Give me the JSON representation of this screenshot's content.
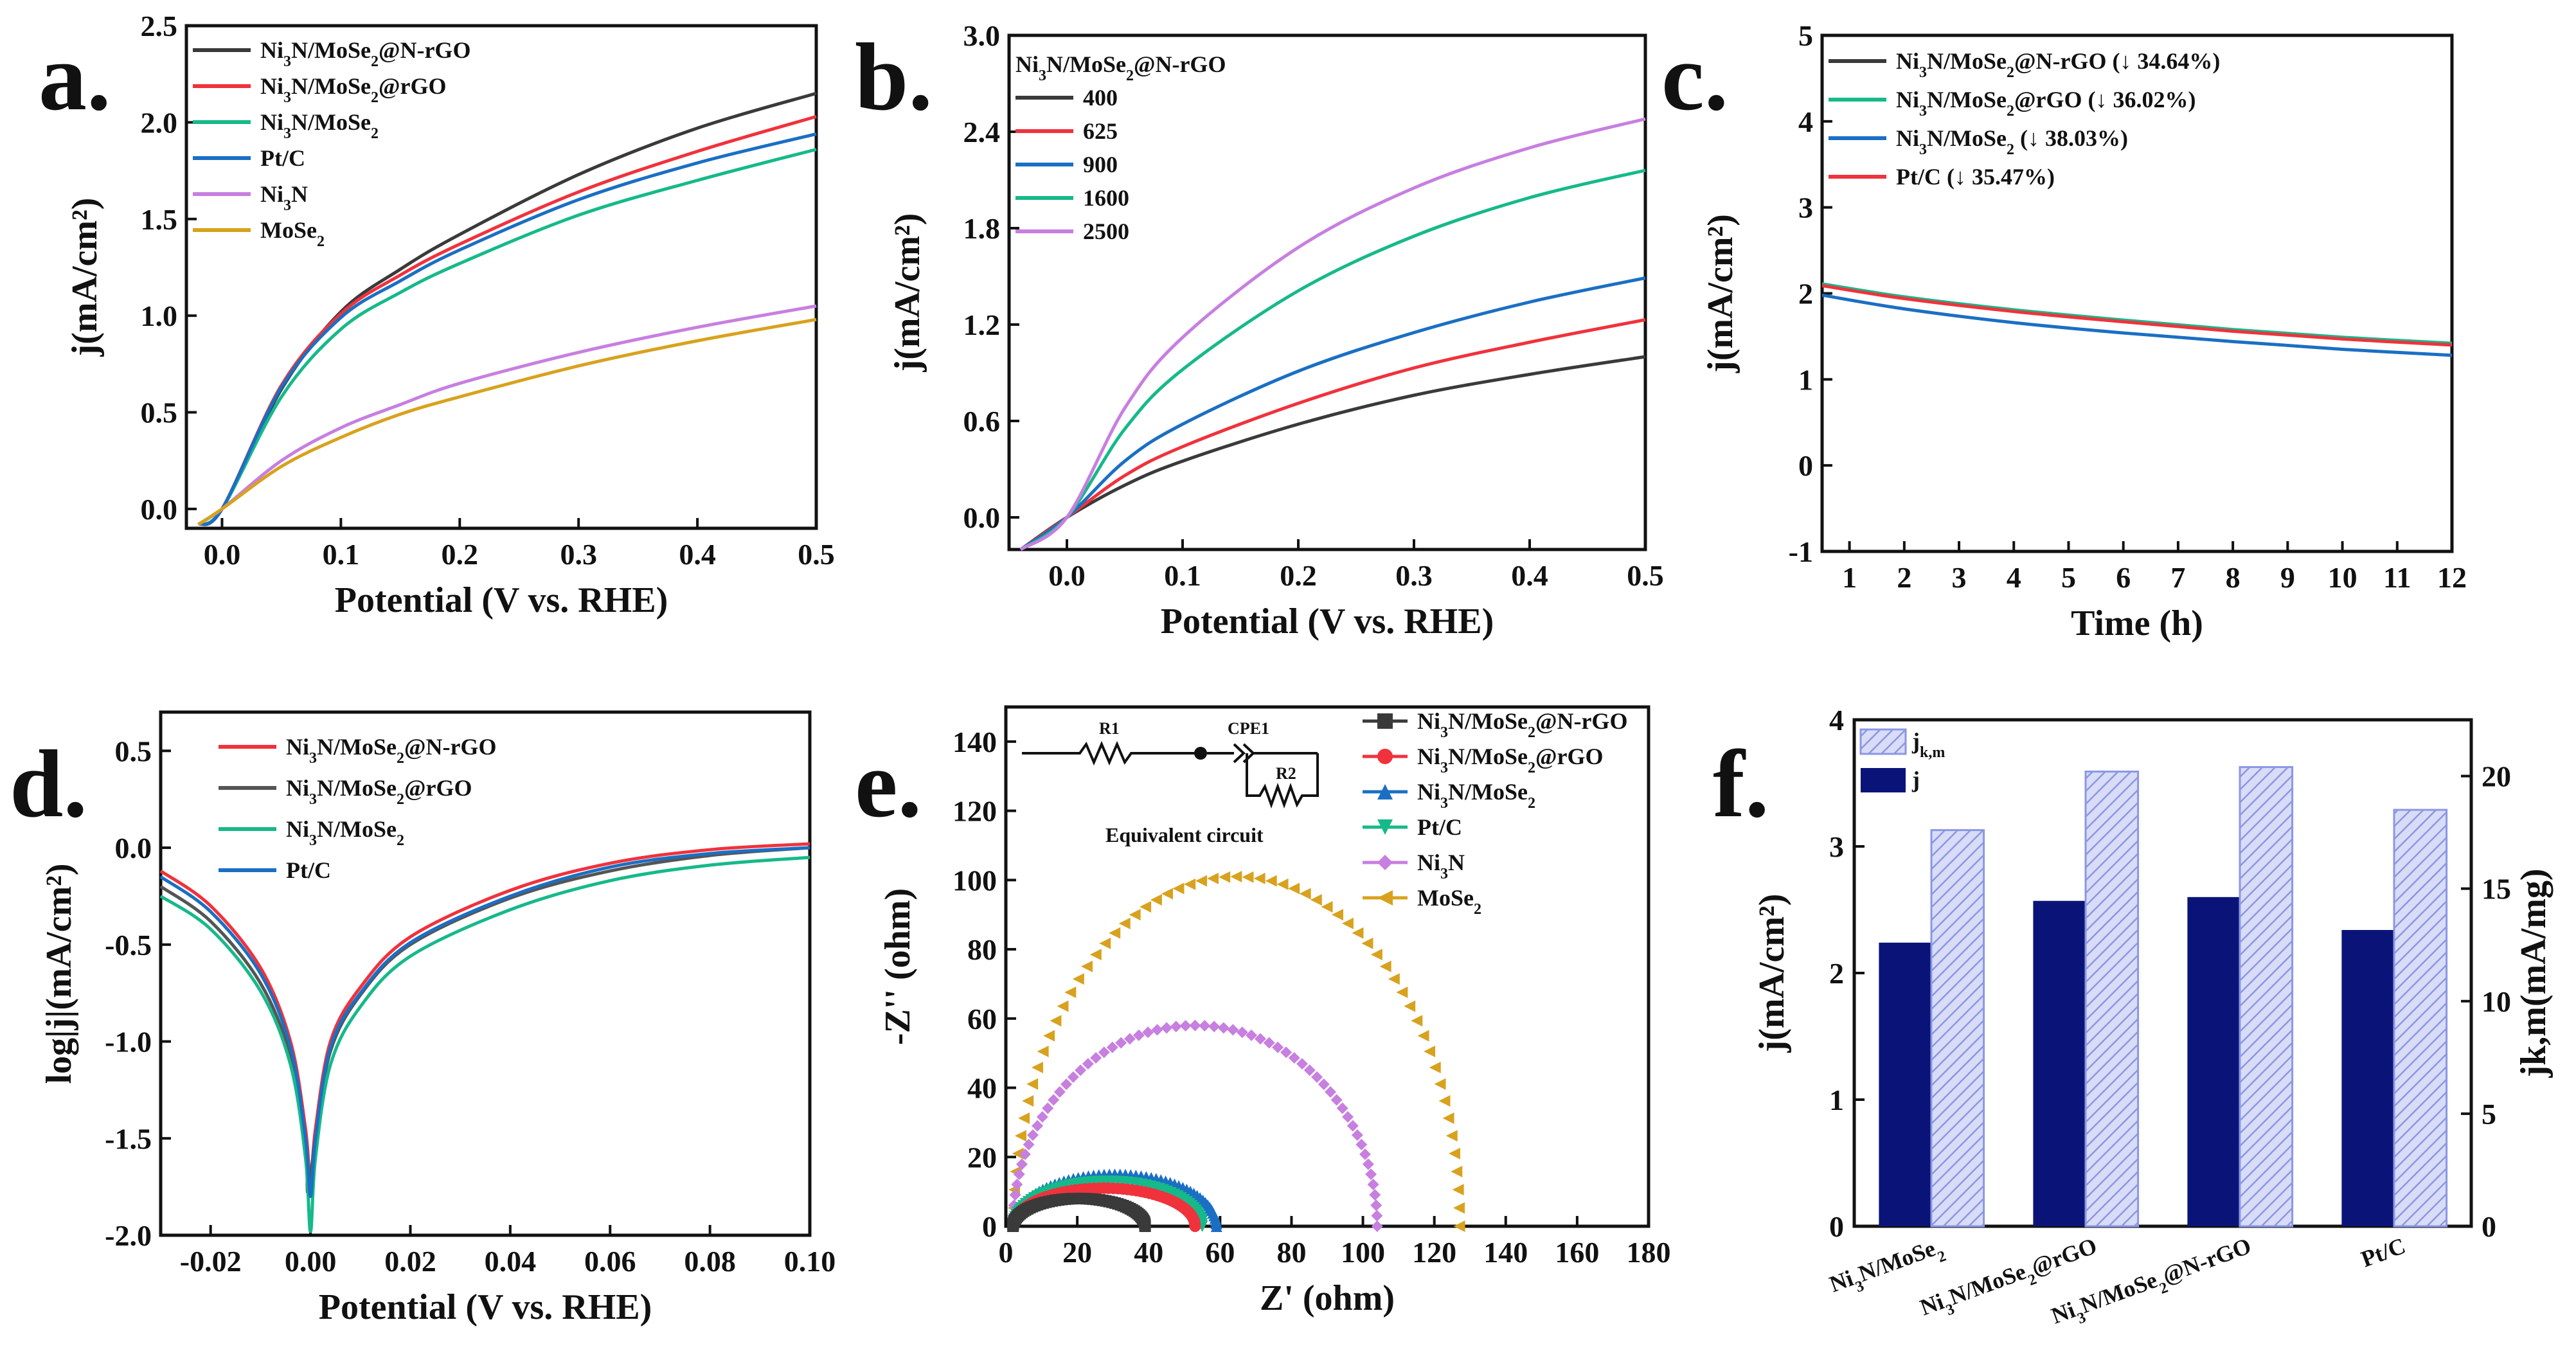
{
  "colors": {
    "black": "#3a3a3a",
    "red": "#f0323c",
    "green": "#16b98a",
    "blue": "#1a6fc4",
    "purple": "#c77fe0",
    "orange": "#d8a21e",
    "gray": "#555555",
    "navy": "#0a1478",
    "hatch": "#aab4ee"
  },
  "panels": {
    "a": "a.",
    "b": "b.",
    "c": "c.",
    "d": "d.",
    "e": "e.",
    "f": "f."
  },
  "circuit": {
    "r1": "R1",
    "r2": "R2",
    "cpe": "CPE1",
    "caption": "Equivalent circuit"
  },
  "chart_data": [
    {
      "id": "a",
      "type": "line",
      "xlabel": "Potential (V vs. RHE)",
      "ylabel": "j(mA/cm²)",
      "xlim": [
        -0.03,
        0.5
      ],
      "ylim": [
        -0.1,
        2.5
      ],
      "xticks": [
        "0.0",
        "0.1",
        "0.2",
        "0.3",
        "0.4",
        "0.5"
      ],
      "yticks": [
        "0.0",
        "0.5",
        "1.0",
        "1.5",
        "2.0",
        "2.5"
      ],
      "legend_position": "top-left",
      "series": [
        {
          "name": "Ni₃N/MoSe₂@N-rGO",
          "color": "black",
          "x": [
            -0.02,
            0.0,
            0.05,
            0.1,
            0.15,
            0.2,
            0.3,
            0.4,
            0.5
          ],
          "y": [
            -0.08,
            0.0,
            0.62,
            1.02,
            1.24,
            1.42,
            1.73,
            1.97,
            2.15
          ]
        },
        {
          "name": "Ni₃N/MoSe₂@rGO",
          "color": "red",
          "x": [
            -0.02,
            0.0,
            0.05,
            0.1,
            0.15,
            0.2,
            0.3,
            0.4,
            0.5
          ],
          "y": [
            -0.08,
            0.0,
            0.64,
            1.01,
            1.21,
            1.37,
            1.64,
            1.85,
            2.03
          ]
        },
        {
          "name": "Ni₃N/MoSe₂",
          "color": "green",
          "x": [
            -0.02,
            0.0,
            0.05,
            0.1,
            0.15,
            0.2,
            0.3,
            0.4,
            0.5
          ],
          "y": [
            -0.08,
            0.0,
            0.58,
            0.93,
            1.12,
            1.27,
            1.52,
            1.7,
            1.86
          ]
        },
        {
          "name": "Pt/C",
          "color": "blue",
          "x": [
            -0.02,
            0.0,
            0.05,
            0.1,
            0.15,
            0.2,
            0.3,
            0.4,
            0.5
          ],
          "y": [
            -0.08,
            0.0,
            0.63,
            0.99,
            1.18,
            1.34,
            1.6,
            1.79,
            1.94
          ]
        },
        {
          "name": "Ni₃N",
          "color": "purple",
          "x": [
            -0.02,
            0.0,
            0.05,
            0.1,
            0.15,
            0.2,
            0.3,
            0.4,
            0.5
          ],
          "y": [
            -0.08,
            0.0,
            0.25,
            0.42,
            0.54,
            0.65,
            0.81,
            0.94,
            1.05
          ]
        },
        {
          "name": "MoSe₂",
          "color": "orange",
          "x": [
            -0.02,
            0.0,
            0.05,
            0.1,
            0.15,
            0.2,
            0.3,
            0.4,
            0.5
          ],
          "y": [
            -0.08,
            0.0,
            0.22,
            0.37,
            0.49,
            0.58,
            0.74,
            0.87,
            0.98
          ]
        }
      ]
    },
    {
      "id": "b",
      "type": "line",
      "xlabel": "Potential (V vs. RHE)",
      "ylabel": "j(mA/cm²)",
      "xlim": [
        -0.05,
        0.5
      ],
      "ylim": [
        -0.2,
        3.0
      ],
      "xticks": [
        "0.0",
        "0.1",
        "0.2",
        "0.3",
        "0.4",
        "0.5"
      ],
      "yticks": [
        "0.0",
        "0.6",
        "1.2",
        "1.8",
        "2.4",
        "3.0"
      ],
      "legend_title": "Ni₃N/MoSe₂@N-rGO",
      "legend_position": "top-left",
      "series": [
        {
          "name": "400",
          "color": "black",
          "x": [
            -0.04,
            0.0,
            0.05,
            0.1,
            0.2,
            0.3,
            0.4,
            0.5
          ],
          "y": [
            -0.2,
            0.0,
            0.2,
            0.35,
            0.58,
            0.76,
            0.89,
            1.0
          ]
        },
        {
          "name": "625",
          "color": "red",
          "x": [
            -0.04,
            0.0,
            0.05,
            0.1,
            0.2,
            0.3,
            0.4,
            0.5
          ],
          "y": [
            -0.2,
            0.0,
            0.26,
            0.44,
            0.71,
            0.93,
            1.09,
            1.23
          ]
        },
        {
          "name": "900",
          "color": "blue",
          "x": [
            -0.04,
            0.0,
            0.05,
            0.1,
            0.2,
            0.3,
            0.4,
            0.5
          ],
          "y": [
            -0.2,
            0.0,
            0.35,
            0.58,
            0.91,
            1.15,
            1.34,
            1.49
          ]
        },
        {
          "name": "1600",
          "color": "green",
          "x": [
            -0.04,
            0.0,
            0.05,
            0.1,
            0.2,
            0.3,
            0.4,
            0.5
          ],
          "y": [
            -0.2,
            0.0,
            0.55,
            0.92,
            1.41,
            1.75,
            1.99,
            2.16
          ]
        },
        {
          "name": "2500",
          "color": "purple",
          "x": [
            -0.04,
            0.0,
            0.05,
            0.1,
            0.2,
            0.3,
            0.4,
            0.5
          ],
          "y": [
            -0.2,
            0.0,
            0.68,
            1.12,
            1.68,
            2.05,
            2.3,
            2.48
          ]
        }
      ]
    },
    {
      "id": "c",
      "type": "line",
      "xlabel": "Time (h)",
      "ylabel": "j(mA/cm²)",
      "xlim": [
        0.5,
        12
      ],
      "ylim": [
        -1,
        5
      ],
      "xticks": [
        "1",
        "2",
        "3",
        "4",
        "5",
        "6",
        "7",
        "8",
        "9",
        "10",
        "11",
        "12"
      ],
      "yticks": [
        "-1",
        "0",
        "1",
        "2",
        "3",
        "4",
        "5"
      ],
      "legend_position": "top-left",
      "series": [
        {
          "name": "Ni₃N/MoSe₂@N-rGO (↓ 34.64%)",
          "color": "black",
          "x": [
            0.5,
            2,
            4,
            6,
            8,
            10,
            12
          ],
          "y": [
            2.1,
            1.95,
            1.8,
            1.68,
            1.57,
            1.48,
            1.4
          ]
        },
        {
          "name": "Ni₃N/MoSe₂@rGO (↓ 36.02%)",
          "color": "green",
          "x": [
            0.5,
            2,
            4,
            6,
            8,
            10,
            12
          ],
          "y": [
            2.11,
            1.96,
            1.81,
            1.69,
            1.58,
            1.49,
            1.42
          ]
        },
        {
          "name": "Ni₃N/MoSe₂ (↓ 38.03%)",
          "color": "blue",
          "x": [
            0.5,
            2,
            4,
            6,
            8,
            10,
            12
          ],
          "y": [
            1.98,
            1.82,
            1.66,
            1.54,
            1.44,
            1.35,
            1.28
          ]
        },
        {
          "name": "Pt/C (↓ 35.47%)",
          "color": "red",
          "x": [
            0.5,
            2,
            4,
            6,
            8,
            10,
            12
          ],
          "y": [
            2.09,
            1.94,
            1.79,
            1.67,
            1.56,
            1.47,
            1.4
          ]
        }
      ]
    },
    {
      "id": "d",
      "type": "line",
      "xlabel": "Potential (V vs. RHE)",
      "ylabel": "log|j|(mA/cm²)",
      "xlim": [
        -0.03,
        0.1
      ],
      "ylim": [
        -2.0,
        0.7
      ],
      "xticks": [
        "-0.02",
        "0.00",
        "0.02",
        "0.04",
        "0.06",
        "0.08",
        "0.10"
      ],
      "yticks": [
        "-2.0",
        "-1.5",
        "-1.0",
        "-0.5",
        "0.0",
        "0.5"
      ],
      "legend_position": "top-left",
      "series": [
        {
          "name": "Ni₃N/MoSe₂@N-rGO",
          "color": "red",
          "x": [
            -0.03,
            -0.02,
            -0.01,
            -0.004,
            -0.001,
            0.0,
            0.001,
            0.004,
            0.01,
            0.02,
            0.04,
            0.06,
            0.08,
            0.1
          ],
          "y": [
            -0.12,
            -0.3,
            -0.62,
            -1.0,
            -1.45,
            -1.72,
            -1.45,
            -1.0,
            -0.72,
            -0.46,
            -0.22,
            -0.08,
            -0.01,
            0.02
          ]
        },
        {
          "name": "Ni₃N/MoSe₂@rGO",
          "color": "gray",
          "x": [
            -0.03,
            -0.02,
            -0.01,
            -0.004,
            -0.001,
            -0.0005,
            0.001,
            0.004,
            0.01,
            0.02,
            0.04,
            0.06,
            0.08,
            0.1
          ],
          "y": [
            -0.2,
            -0.38,
            -0.7,
            -1.08,
            -1.55,
            -1.78,
            -1.5,
            -1.05,
            -0.76,
            -0.5,
            -0.26,
            -0.12,
            -0.04,
            0.0
          ]
        },
        {
          "name": "Ni₃N/MoSe₂",
          "color": "green",
          "x": [
            -0.03,
            -0.02,
            -0.01,
            -0.004,
            -0.001,
            0.0,
            0.001,
            0.004,
            0.01,
            0.02,
            0.04,
            0.06,
            0.08,
            0.1
          ],
          "y": [
            -0.25,
            -0.42,
            -0.74,
            -1.12,
            -1.6,
            -1.98,
            -1.6,
            -1.12,
            -0.82,
            -0.56,
            -0.32,
            -0.17,
            -0.09,
            -0.05
          ]
        },
        {
          "name": "Pt/C",
          "color": "blue",
          "x": [
            -0.03,
            -0.02,
            -0.01,
            -0.004,
            -0.001,
            0.0,
            0.001,
            0.004,
            0.01,
            0.02,
            0.04,
            0.06,
            0.08,
            0.1
          ],
          "y": [
            -0.15,
            -0.33,
            -0.65,
            -1.03,
            -1.5,
            -1.8,
            -1.5,
            -1.03,
            -0.75,
            -0.49,
            -0.25,
            -0.1,
            -0.03,
            0.0
          ]
        }
      ]
    },
    {
      "id": "e",
      "type": "scatter",
      "xlabel": "Z' (ohm)",
      "ylabel": "-Z'' (ohm)",
      "xlim": [
        0,
        180
      ],
      "ylim": [
        0,
        150
      ],
      "xticks": [
        "0",
        "20",
        "40",
        "60",
        "80",
        "100",
        "120",
        "140",
        "160",
        "180"
      ],
      "yticks": [
        "0",
        "20",
        "40",
        "60",
        "80",
        "100",
        "120",
        "140"
      ],
      "legend_position": "top-right",
      "series": [
        {
          "name": "Ni₃N/MoSe₂@N-rGO",
          "color": "black",
          "marker": "square",
          "x0": 2,
          "x1": 39,
          "peak": 8
        },
        {
          "name": "Ni₃N/MoSe₂@rGO",
          "color": "red",
          "marker": "circle",
          "x0": 2,
          "x1": 53,
          "peak": 11
        },
        {
          "name": "Ni₃N/MoSe₂",
          "color": "blue",
          "marker": "triangle-up",
          "x0": 2,
          "x1": 59,
          "peak": 15
        },
        {
          "name": "Pt/C",
          "color": "green",
          "marker": "triangle-down",
          "x0": 2,
          "x1": 55,
          "peak": 13
        },
        {
          "name": "Ni₃N",
          "color": "purple",
          "marker": "diamond",
          "x0": 2,
          "x1": 104,
          "peak": 58
        },
        {
          "name": "MoSe₂",
          "color": "orange",
          "marker": "triangle-left",
          "x0": 2,
          "x1": 127,
          "peak": 101
        }
      ]
    },
    {
      "id": "f",
      "type": "bar",
      "ylabel": "j(mA/cm²)",
      "y2label": "jk,m(mA/mg)",
      "ylim": [
        0,
        4
      ],
      "y2lim": [
        0,
        22.5
      ],
      "yticks": [
        "0",
        "1",
        "2",
        "3",
        "4"
      ],
      "y2ticks": [
        "0",
        "5",
        "10",
        "15",
        "20"
      ],
      "categories": [
        "Ni₃N/MoSe₂",
        "Ni₃N/MoSe₂@rGO",
        "Ni₃N/MoSe₂@N-rGO",
        "Pt/C"
      ],
      "legend_position": "top-left",
      "series": [
        {
          "name": "jk,m",
          "axis": "right",
          "style": "hatch",
          "values": [
            17.6,
            20.2,
            20.4,
            18.5
          ]
        },
        {
          "name": "j",
          "axis": "left",
          "style": "solid",
          "values": [
            2.24,
            2.57,
            2.6,
            2.34
          ]
        }
      ]
    }
  ]
}
